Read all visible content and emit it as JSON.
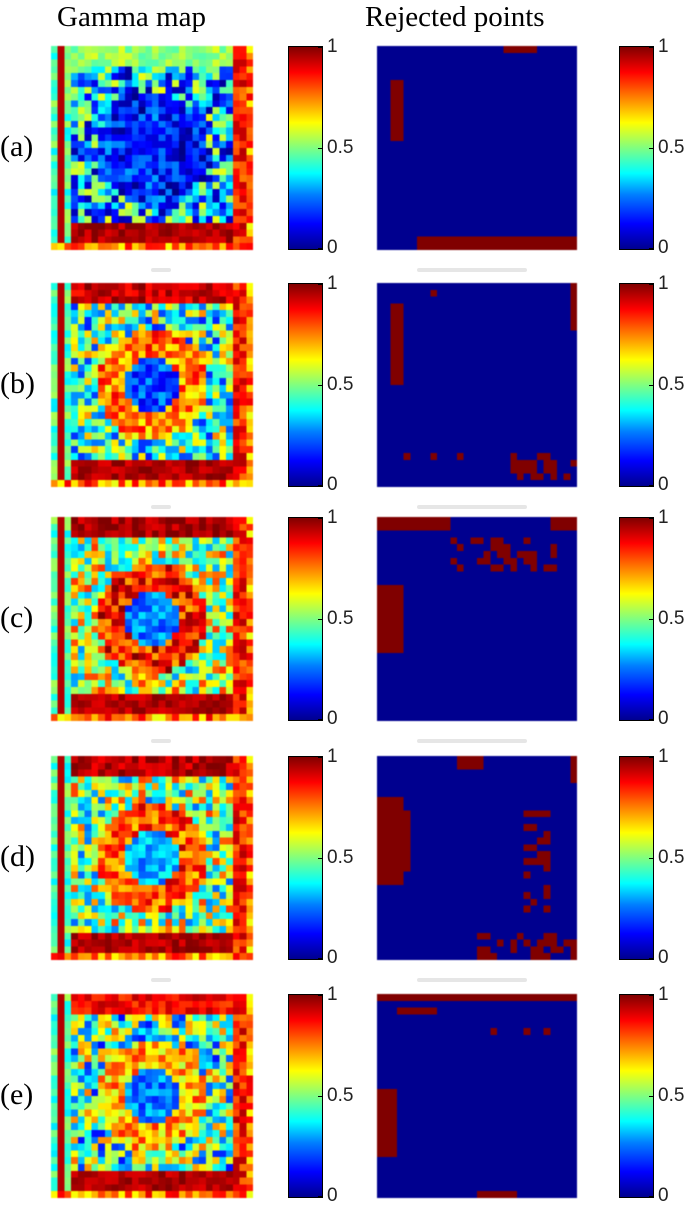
{
  "headers": {
    "gamma": "Gamma map",
    "rejected": "Rejected points"
  },
  "colorbar": {
    "ticks": [
      "1",
      "0.5",
      "0"
    ],
    "colormap": "jet",
    "range": [
      0,
      1
    ]
  },
  "colors": {
    "background_blue": "#00008f",
    "rejected_red": "#800000"
  },
  "chart_data": [
    {
      "type": "heatmap",
      "row_label": "(a)",
      "panel": "gamma",
      "colormap": "jet",
      "zlim": [
        0,
        1
      ]
    },
    {
      "type": "heatmap",
      "row_label": "(a)",
      "panel": "rejected",
      "zlim": [
        0,
        1
      ]
    },
    {
      "type": "heatmap",
      "row_label": "(b)",
      "panel": "gamma",
      "colormap": "jet",
      "zlim": [
        0,
        1
      ]
    },
    {
      "type": "heatmap",
      "row_label": "(b)",
      "panel": "rejected",
      "zlim": [
        0,
        1
      ]
    },
    {
      "type": "heatmap",
      "row_label": "(c)",
      "panel": "gamma",
      "colormap": "jet",
      "zlim": [
        0,
        1
      ]
    },
    {
      "type": "heatmap",
      "row_label": "(c)",
      "panel": "rejected",
      "zlim": [
        0,
        1
      ]
    },
    {
      "type": "heatmap",
      "row_label": "(d)",
      "panel": "gamma",
      "colormap": "jet",
      "zlim": [
        0,
        1
      ]
    },
    {
      "type": "heatmap",
      "row_label": "(d)",
      "panel": "rejected",
      "zlim": [
        0,
        1
      ]
    },
    {
      "type": "heatmap",
      "row_label": "(e)",
      "panel": "gamma",
      "colormap": "jet",
      "zlim": [
        0,
        1
      ]
    },
    {
      "type": "heatmap",
      "row_label": "(e)",
      "panel": "rejected",
      "zlim": [
        0,
        1
      ]
    }
  ],
  "rows": [
    {
      "label": "(a)"
    },
    {
      "label": "(b)"
    },
    {
      "label": "(c)"
    },
    {
      "label": "(d)"
    },
    {
      "label": "(e)"
    }
  ]
}
